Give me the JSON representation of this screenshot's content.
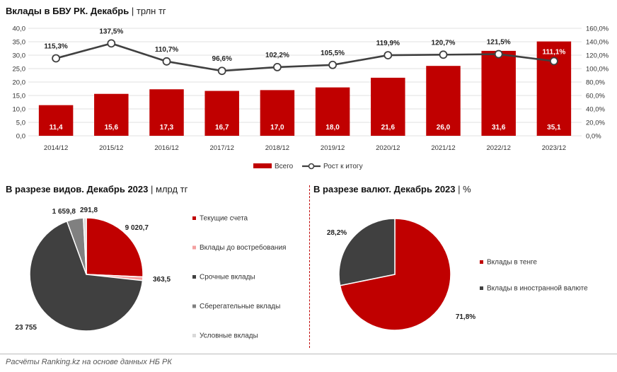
{
  "header": {
    "title": "Вклады в БВУ РК. Декабрь",
    "unit": "трлн тг"
  },
  "section_types": {
    "title": "В разрезе видов. Декабрь 2023",
    "unit": "млрд тг"
  },
  "section_currency": {
    "title": "В разрезе валют. Декабрь 2023",
    "unit": "%"
  },
  "footer": {
    "text": "Расчёты Ranking.kz на основе данных НБ РК"
  },
  "colors": {
    "red": "#c00000",
    "pink": "#f4a0a0",
    "dark": "#404040",
    "gray": "#808080",
    "light": "#d9d9d9",
    "line": "#404040",
    "divider": "#c00000"
  },
  "chart_data": [
    {
      "type": "bar+line",
      "categories": [
        "2014/12",
        "2015/12",
        "2016/12",
        "2017/12",
        "2018/12",
        "2019/12",
        "2020/12",
        "2021/12",
        "2022/12",
        "2023/12"
      ],
      "series": [
        {
          "name": "Всего",
          "type": "bar",
          "axis": "left",
          "values": [
            11.4,
            15.6,
            17.3,
            16.7,
            17.0,
            18.0,
            21.6,
            26.0,
            31.6,
            35.1
          ],
          "labels": [
            "11,4",
            "15,6",
            "17,3",
            "16,7",
            "17,0",
            "18,0",
            "21,6",
            "26,0",
            "31,6",
            "35,1"
          ]
        },
        {
          "name": "Рост к итогу",
          "type": "line",
          "axis": "right",
          "values": [
            115.3,
            137.5,
            110.7,
            96.6,
            102.2,
            105.5,
            119.9,
            120.7,
            121.5,
            111.1
          ],
          "labels": [
            "115,3%",
            "137,5%",
            "110,7%",
            "96,6%",
            "102,2%",
            "105,5%",
            "119,9%",
            "120,7%",
            "121,5%",
            "111,1%"
          ]
        }
      ],
      "ylim": [
        0,
        40
      ],
      "yticks": [
        "0,0",
        "5,0",
        "10,0",
        "15,0",
        "20,0",
        "25,0",
        "30,0",
        "35,0",
        "40,0"
      ],
      "y2lim": [
        0,
        160
      ],
      "y2ticks": [
        "0,0%",
        "20,0%",
        "40,0%",
        "60,0%",
        "80,0%",
        "100,0%",
        "120,0%",
        "140,0%",
        "160,0%"
      ],
      "legend_position": "bottom"
    },
    {
      "type": "pie",
      "slices": [
        {
          "name": "Текущие счета",
          "value": 9020.7,
          "label": "9 020,7"
        },
        {
          "name": "Вклады до востребования",
          "value": 363.5,
          "label": "363,5"
        },
        {
          "name": "Срочные вклады",
          "value": 23755,
          "label": "23 755"
        },
        {
          "name": "Сберегательные вклады",
          "value": 1659.8,
          "label": "1 659,8"
        },
        {
          "name": "Условные вклады",
          "value": 291.8,
          "label": "291,8"
        }
      ],
      "legend_position": "right"
    },
    {
      "type": "pie",
      "slices": [
        {
          "name": "Вклады в тенге",
          "value": 71.8,
          "label": "71,8%"
        },
        {
          "name": "Вклады в иностранной валюте",
          "value": 28.2,
          "label": "28,2%"
        }
      ],
      "legend_position": "right"
    }
  ]
}
